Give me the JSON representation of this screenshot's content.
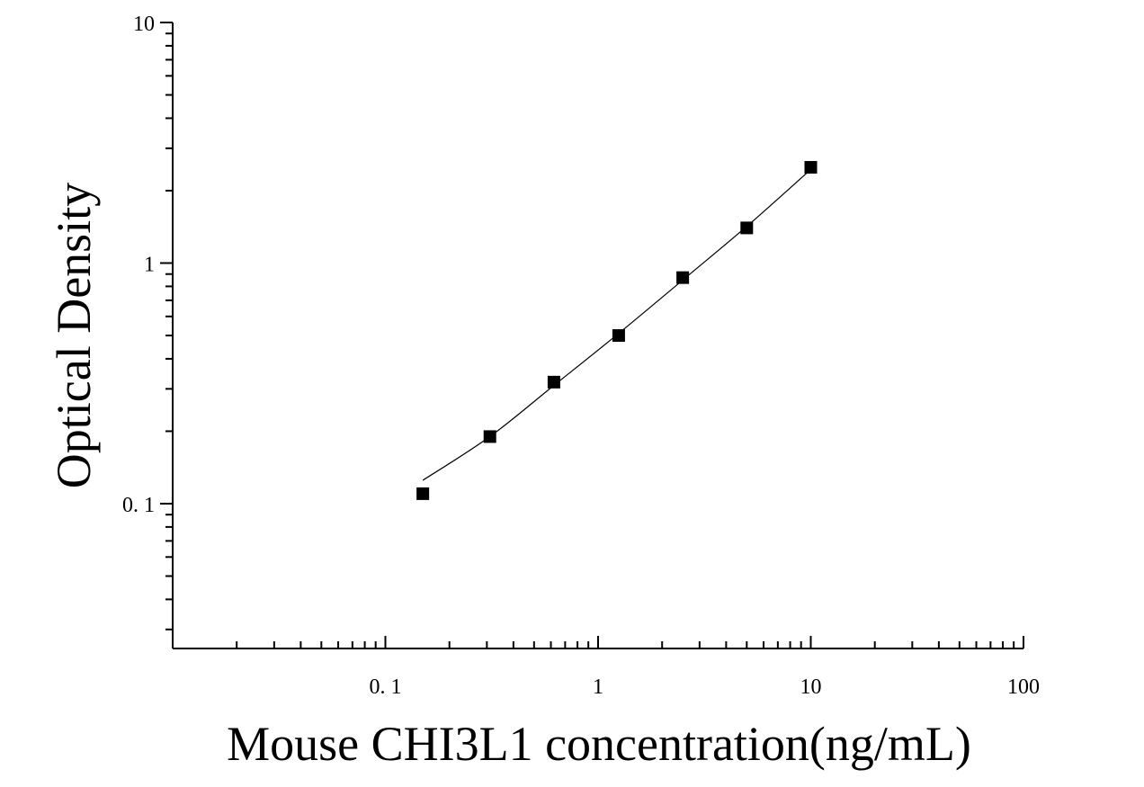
{
  "chart_data": {
    "type": "scatter",
    "title": "",
    "xlabel": "Mouse CHI3L1 concentration(ng/mL)",
    "ylabel": "Optical Density",
    "xscale": "log",
    "yscale": "log",
    "xlim": [
      0.01,
      100
    ],
    "ylim": [
      0.025,
      10
    ],
    "x_tick_labels": [
      {
        "value": 0.1,
        "label": "0. 1"
      },
      {
        "value": 1,
        "label": "1"
      },
      {
        "value": 10,
        "label": "10"
      },
      {
        "value": 100,
        "label": "100"
      }
    ],
    "y_tick_labels": [
      {
        "value": 0.1,
        "label": "0. 1"
      },
      {
        "value": 1,
        "label": "1"
      },
      {
        "value": 10,
        "label": "10"
      }
    ],
    "grid": false,
    "legend": "none",
    "series": [
      {
        "marker": "square",
        "color": "#000000",
        "x": [
          0.15,
          0.31,
          0.62,
          1.25,
          2.5,
          5,
          10
        ],
        "y": [
          0.11,
          0.19,
          0.32,
          0.5,
          0.87,
          1.4,
          2.5
        ]
      }
    ],
    "fit_curve": {
      "color": "#000000",
      "x": [
        0.15,
        0.31,
        0.62,
        1.25,
        2.5,
        5,
        10
      ],
      "y": [
        0.125,
        0.19,
        0.31,
        0.51,
        0.85,
        1.42,
        2.45
      ]
    }
  }
}
